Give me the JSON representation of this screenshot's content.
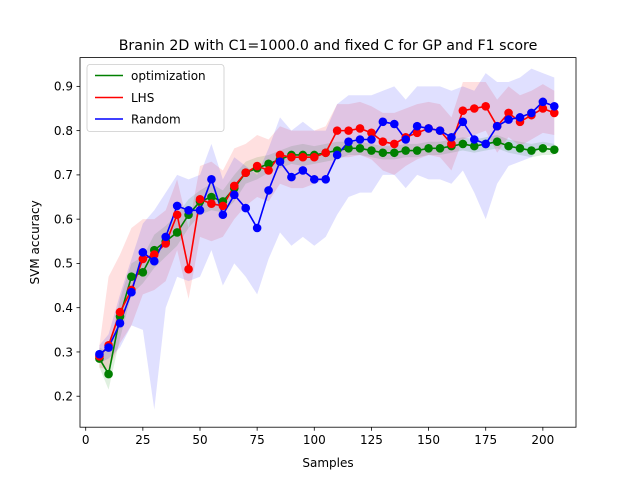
{
  "chart_data": {
    "type": "line",
    "title": "Branin 2D with C1=1000.0 and fixed C for GP and F1 score",
    "xlabel": "Samples",
    "ylabel": "SVM accuracy",
    "xlim": [
      -2.5,
      214.5
    ],
    "ylim": [
      0.13,
      0.965
    ],
    "xticks": [
      0,
      25,
      50,
      75,
      100,
      125,
      150,
      175,
      200
    ],
    "yticks": [
      0.2,
      0.3,
      0.4,
      0.5,
      0.6,
      0.7,
      0.8,
      0.9
    ],
    "xtick_labels": [
      "0",
      "25",
      "50",
      "75",
      "100",
      "125",
      "150",
      "175",
      "200"
    ],
    "ytick_labels": [
      "0.2",
      "0.3",
      "0.4",
      "0.5",
      "0.6",
      "0.7",
      "0.8",
      "0.9"
    ],
    "grid": false,
    "legend_position": "top-left",
    "x": [
      6,
      10,
      15,
      20,
      25,
      30,
      35,
      40,
      45,
      50,
      55,
      60,
      65,
      70,
      75,
      80,
      85,
      90,
      95,
      100,
      105,
      110,
      115,
      120,
      125,
      130,
      135,
      140,
      145,
      150,
      155,
      160,
      165,
      170,
      175,
      180,
      185,
      190,
      195,
      200,
      205
    ],
    "series": [
      {
        "name": "optimization",
        "color": "#008000",
        "values": [
          0.285,
          0.25,
          0.38,
          0.47,
          0.48,
          0.53,
          0.55,
          0.57,
          0.61,
          0.64,
          0.65,
          0.64,
          0.67,
          0.705,
          0.715,
          0.725,
          0.735,
          0.745,
          0.745,
          0.745,
          0.75,
          0.755,
          0.76,
          0.76,
          0.755,
          0.75,
          0.75,
          0.755,
          0.755,
          0.76,
          0.76,
          0.765,
          0.77,
          0.765,
          0.77,
          0.775,
          0.765,
          0.76,
          0.755,
          0.76,
          0.757
        ],
        "lower": [
          0.265,
          0.215,
          0.33,
          0.43,
          0.455,
          0.49,
          0.515,
          0.54,
          0.58,
          0.61,
          0.62,
          0.615,
          0.64,
          0.68,
          0.69,
          0.705,
          0.715,
          0.725,
          0.72,
          0.725,
          0.73,
          0.735,
          0.745,
          0.745,
          0.74,
          0.735,
          0.735,
          0.74,
          0.74,
          0.745,
          0.745,
          0.75,
          0.755,
          0.75,
          0.755,
          0.76,
          0.75,
          0.745,
          0.74,
          0.745,
          0.745
        ],
        "upper": [
          0.31,
          0.3,
          0.42,
          0.5,
          0.515,
          0.565,
          0.585,
          0.61,
          0.645,
          0.665,
          0.68,
          0.665,
          0.7,
          0.73,
          0.74,
          0.745,
          0.755,
          0.765,
          0.77,
          0.765,
          0.77,
          0.775,
          0.775,
          0.775,
          0.77,
          0.765,
          0.765,
          0.77,
          0.77,
          0.775,
          0.775,
          0.78,
          0.785,
          0.78,
          0.785,
          0.79,
          0.78,
          0.775,
          0.77,
          0.775,
          0.77
        ]
      },
      {
        "name": "LHS",
        "color": "#ff0000",
        "values": [
          0.29,
          0.315,
          0.39,
          0.44,
          0.51,
          0.52,
          0.545,
          0.61,
          0.487,
          0.645,
          0.635,
          0.63,
          0.675,
          0.705,
          0.72,
          0.71,
          0.745,
          0.74,
          0.74,
          0.74,
          0.75,
          0.8,
          0.8,
          0.805,
          0.795,
          0.775,
          0.77,
          0.785,
          0.795,
          0.805,
          0.8,
          0.77,
          0.845,
          0.85,
          0.855,
          0.81,
          0.84,
          0.82,
          0.835,
          0.85,
          0.84
        ],
        "lower": [
          0.265,
          0.26,
          0.32,
          0.36,
          0.43,
          0.44,
          0.46,
          0.53,
          0.42,
          0.56,
          0.55,
          0.56,
          0.6,
          0.63,
          0.65,
          0.64,
          0.68,
          0.67,
          0.67,
          0.68,
          0.69,
          0.74,
          0.74,
          0.745,
          0.735,
          0.71,
          0.7,
          0.72,
          0.735,
          0.745,
          0.74,
          0.71,
          0.78,
          0.79,
          0.8,
          0.75,
          0.785,
          0.765,
          0.78,
          0.795,
          0.79
        ],
        "upper": [
          0.315,
          0.47,
          0.52,
          0.58,
          0.6,
          0.6,
          0.62,
          0.69,
          0.58,
          0.72,
          0.73,
          0.71,
          0.76,
          0.77,
          0.79,
          0.78,
          0.81,
          0.8,
          0.8,
          0.8,
          0.81,
          0.86,
          0.86,
          0.865,
          0.855,
          0.84,
          0.84,
          0.85,
          0.86,
          0.865,
          0.86,
          0.83,
          0.91,
          0.91,
          0.91,
          0.87,
          0.9,
          0.88,
          0.89,
          0.905,
          0.89
        ]
      },
      {
        "name": "Random",
        "color": "#0000ff",
        "values": [
          0.295,
          0.31,
          0.365,
          0.435,
          0.525,
          0.505,
          0.56,
          0.63,
          0.62,
          0.62,
          0.69,
          0.61,
          0.655,
          0.625,
          0.58,
          0.665,
          0.73,
          0.695,
          0.71,
          0.69,
          0.69,
          0.745,
          0.775,
          0.78,
          0.78,
          0.82,
          0.815,
          0.78,
          0.81,
          0.805,
          0.8,
          0.785,
          0.82,
          0.78,
          0.77,
          0.81,
          0.825,
          0.83,
          0.84,
          0.865,
          0.855
        ],
        "lower": [
          0.275,
          0.285,
          0.31,
          0.36,
          0.35,
          0.17,
          0.4,
          0.47,
          0.46,
          0.47,
          0.53,
          0.45,
          0.5,
          0.47,
          0.43,
          0.51,
          0.57,
          0.54,
          0.56,
          0.54,
          0.56,
          0.61,
          0.65,
          0.66,
          0.66,
          0.7,
          0.7,
          0.67,
          0.7,
          0.69,
          0.69,
          0.68,
          0.71,
          0.66,
          0.6,
          0.68,
          0.72,
          0.73,
          0.74,
          0.77,
          0.76
        ],
        "upper": [
          0.315,
          0.34,
          0.43,
          0.51,
          0.59,
          0.62,
          0.66,
          0.7,
          0.69,
          0.7,
          0.77,
          0.69,
          0.74,
          0.72,
          0.7,
          0.76,
          0.83,
          0.8,
          0.82,
          0.8,
          0.8,
          0.86,
          0.88,
          0.88,
          0.88,
          0.89,
          0.9,
          0.87,
          0.9,
          0.9,
          0.9,
          0.89,
          0.9,
          0.89,
          0.93,
          0.91,
          0.91,
          0.92,
          0.94,
          0.93,
          0.92
        ]
      }
    ]
  }
}
